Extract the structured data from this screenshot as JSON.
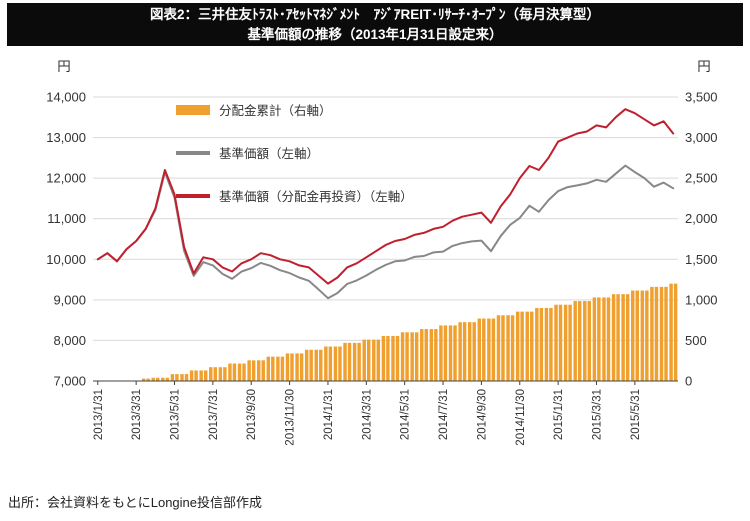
{
  "title": {
    "line1": "図表2：三井住友ﾄﾗｽﾄ･ｱｾｯﾄﾏﾈｼﾞﾒﾝﾄ　ｱｼﾞｱREIT･ﾘｻｰﾁ･ｵｰﾌﾟﾝ（毎月決算型）",
    "line2": "基準価額の推移（2013年1月31日設定来）"
  },
  "axes": {
    "left_unit": "円",
    "right_unit": "円",
    "left_ticks": [
      "14,000",
      "13,000",
      "12,000",
      "11,000",
      "10,000",
      "9,000",
      "8,000",
      "7,000"
    ],
    "right_ticks": [
      "3,500",
      "3,000",
      "2,500",
      "2,000",
      "1,500",
      "1,000",
      "500",
      "0"
    ]
  },
  "legend": {
    "position": "top-left-inside",
    "items": [
      {
        "label": "分配金累計（右軸）",
        "type": "bar",
        "color": "#F0A02F"
      },
      {
        "label": "基準価額（左軸）",
        "type": "line",
        "color": "#888888"
      },
      {
        "label": "基準価額（分配金再投資）（左軸）",
        "type": "line",
        "color": "#C0202E"
      }
    ]
  },
  "source_note": "出所：会社資料をもとにLongine投信部作成",
  "chart_data": {
    "type": "combo",
    "title": "基準価額の推移（2013年1月31日設定来）",
    "x_resolution": "semi-monthly points (values estimated from plot)",
    "x_labels": [
      "2013/1/31",
      "2013/3/31",
      "2013/5/31",
      "2013/7/31",
      "2013/9/30",
      "2013/11/30",
      "2014/1/31",
      "2014/3/31",
      "2014/5/31",
      "2014/7/31",
      "2014/9/30",
      "2014/11/30",
      "2015/1/31",
      "2015/3/31",
      "2015/5/31"
    ],
    "label_every_n_points": 4,
    "grid_color": "#D9D9D9",
    "left_axis": {
      "min": 7000,
      "max": 14000,
      "tick_step": 1000
    },
    "right_axis": {
      "min": 0,
      "max": 3500,
      "tick_step": 500
    },
    "series": [
      {
        "name": "分配金累計（右軸）",
        "type": "bar",
        "axis": "right",
        "color": "#F0A02F",
        "values": [
          0,
          0,
          0,
          0,
          0,
          30,
          40,
          40,
          85,
          85,
          130,
          130,
          170,
          170,
          215,
          215,
          255,
          255,
          300,
          300,
          340,
          340,
          385,
          385,
          425,
          425,
          470,
          470,
          510,
          510,
          555,
          555,
          600,
          600,
          640,
          640,
          685,
          685,
          725,
          725,
          770,
          770,
          810,
          810,
          855,
          855,
          900,
          900,
          940,
          940,
          985,
          985,
          1030,
          1030,
          1070,
          1070,
          1115,
          1115,
          1160,
          1160,
          1200
        ]
      },
      {
        "name": "基準価額（左軸）",
        "type": "line",
        "axis": "left",
        "color": "#888888",
        "values": [
          10000,
          10150,
          9950,
          10250,
          10450,
          10750,
          11210,
          12150,
          11520,
          10210,
          9590,
          9930,
          9850,
          9640,
          9520,
          9700,
          9780,
          9910,
          9840,
          9730,
          9660,
          9550,
          9470,
          9260,
          9040,
          9170,
          9390,
          9480,
          9600,
          9740,
          9860,
          9950,
          9970,
          10060,
          10080,
          10170,
          10190,
          10330,
          10400,
          10440,
          10460,
          10200,
          10570,
          10850,
          11020,
          11320,
          11170,
          11460,
          11680,
          11780,
          11820,
          11870,
          11960,
          11910,
          12110,
          12310,
          12150,
          12000,
          11790,
          11890,
          11750
        ]
      },
      {
        "name": "基準価額（分配金再投資）（左軸）",
        "type": "line",
        "axis": "left",
        "color": "#C0202E",
        "values": [
          10000,
          10150,
          9950,
          10250,
          10450,
          10750,
          11250,
          12200,
          11600,
          10300,
          9650,
          10050,
          10000,
          9800,
          9700,
          9900,
          10000,
          10150,
          10100,
          10000,
          9950,
          9850,
          9800,
          9600,
          9400,
          9550,
          9800,
          9900,
          10050,
          10200,
          10350,
          10450,
          10500,
          10600,
          10650,
          10750,
          10800,
          10950,
          11050,
          11100,
          11150,
          10900,
          11300,
          11600,
          12000,
          12300,
          12200,
          12500,
          12900,
          13000,
          13100,
          13150,
          13300,
          13250,
          13500,
          13700,
          13600,
          13450,
          13300,
          13400,
          13100
        ]
      }
    ]
  }
}
